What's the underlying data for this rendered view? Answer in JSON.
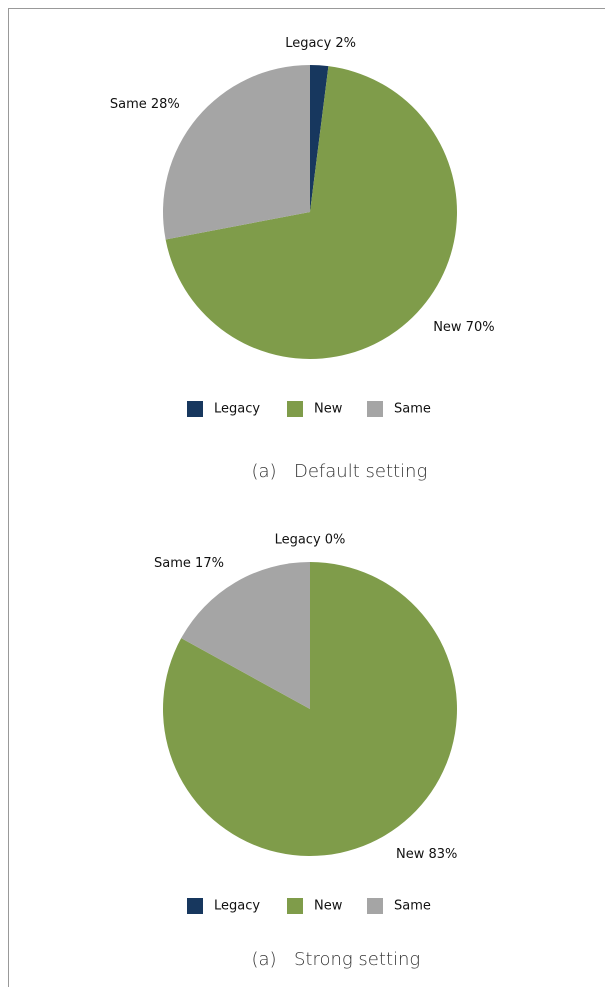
{
  "chart_data": [
    {
      "type": "pie",
      "categories": [
        "Legacy",
        "New",
        "Same"
      ],
      "values": [
        2,
        70,
        28
      ],
      "value_labels": [
        "Legacy 2%",
        "New 70%",
        "Same 28%"
      ],
      "colors": [
        "#17375e",
        "#7f9c4a",
        "#a5a5a5"
      ],
      "caption_label": "(a)",
      "caption": "Default setting"
    },
    {
      "type": "pie",
      "categories": [
        "Legacy",
        "New",
        "Same"
      ],
      "values": [
        0,
        83,
        17
      ],
      "value_labels": [
        "Legacy 0%",
        "New 83%",
        "Same 17%"
      ],
      "colors": [
        "#17375e",
        "#7f9c4a",
        "#a5a5a5"
      ],
      "caption_label": "(a)",
      "caption": "Strong setting"
    }
  ]
}
